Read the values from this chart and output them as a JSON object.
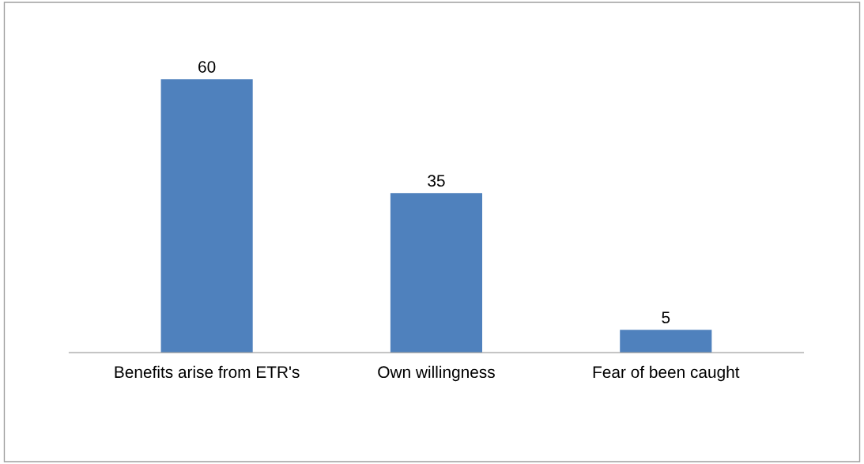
{
  "chart_data": {
    "type": "bar",
    "categories": [
      "Benefits arise from ETR's",
      "Own willingness",
      "Fear of been caught"
    ],
    "values": [
      60,
      35,
      5
    ],
    "color": "#4f81bd",
    "data_labels": true,
    "grid": false,
    "legend": false,
    "tick_labels": "x"
  }
}
